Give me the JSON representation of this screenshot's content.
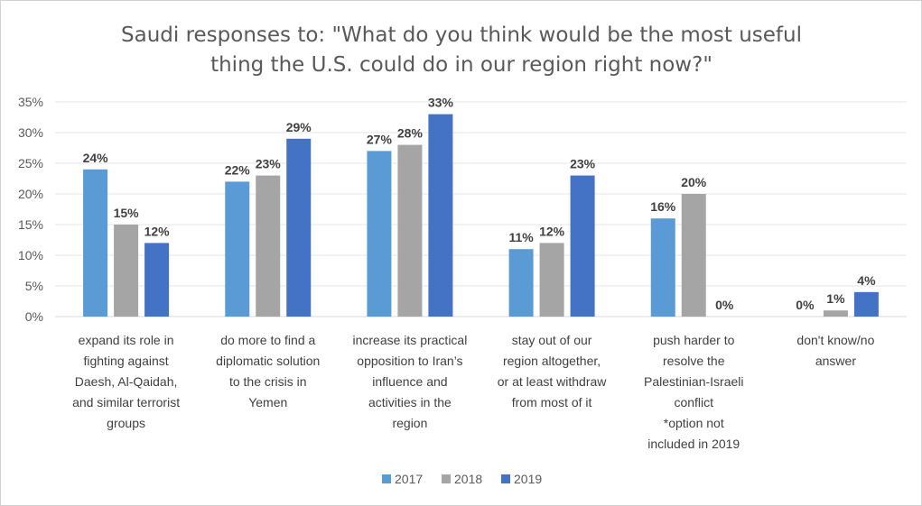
{
  "chart_data": {
    "type": "bar",
    "title": "Saudi responses to: \"What do you think would be the most useful thing the U.S. could do in our region right now?\"",
    "title_lines": [
      "Saudi responses to: \"What do you think would be the most useful",
      "thing the U.S. could do in our region right now?\""
    ],
    "categories": [
      "expand its role in fighting against Daesh, Al-Qaidah, and similar terrorist groups",
      "do more to find a diplomatic solution to the crisis in Yemen",
      "increase its practical opposition to Iran’s influence and activities in the region",
      "stay out of our region altogether, or at least withdraw from most of it",
      "push harder to resolve the Palestinian-Israeli conflict *option not included in 2019",
      "don't know/no answer"
    ],
    "category_lines": [
      [
        "expand its role in",
        "fighting against",
        "Daesh, Al-Qaidah,",
        "and similar terrorist",
        "groups"
      ],
      [
        "do more to find a",
        "diplomatic solution",
        "to the crisis in",
        "Yemen"
      ],
      [
        "increase its practical",
        "opposition to Iran’s",
        "influence and",
        "activities in the",
        "region"
      ],
      [
        "stay out of our",
        "region altogether,",
        "or at least withdraw",
        "from most of it"
      ],
      [
        "push harder to",
        "resolve the",
        "Palestinian-Israeli",
        "conflict",
        "*option not",
        "included in 2019"
      ],
      [
        "don't know/no",
        "answer"
      ]
    ],
    "series": [
      {
        "name": "2017",
        "color": "#5b9bd5",
        "values": [
          24,
          22,
          27,
          11,
          16,
          0
        ]
      },
      {
        "name": "2018",
        "color": "#a5a5a5",
        "values": [
          15,
          23,
          28,
          12,
          20,
          1
        ]
      },
      {
        "name": "2019",
        "color": "#4472c4",
        "values": [
          12,
          29,
          33,
          23,
          0,
          4
        ]
      }
    ],
    "unit_suffix": "%",
    "ylim": [
      0,
      35
    ],
    "yticks": [
      0,
      5,
      10,
      15,
      20,
      25,
      30,
      35
    ],
    "grid": true,
    "legend_position": "bottom"
  }
}
